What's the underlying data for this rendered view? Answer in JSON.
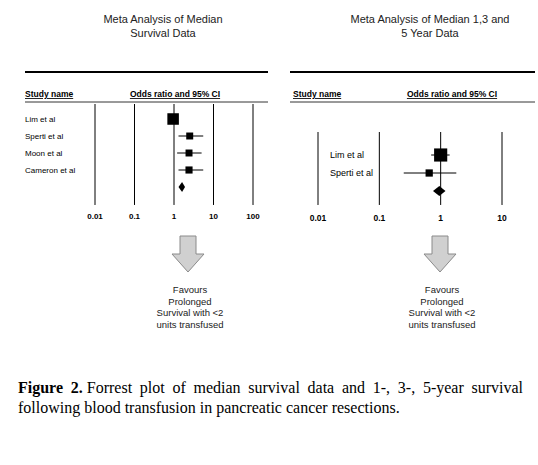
{
  "chart_data": [
    {
      "type": "forest",
      "title": "Meta Analysis of Median Survival Data",
      "column_headers": [
        "Study name",
        "Odds ratio and 95% CI"
      ],
      "categories": [
        "Lim et al",
        "Sperti et al",
        "Moon et al",
        "Cameron et al",
        null
      ],
      "series": [
        {
          "marker": "square",
          "values": [
            0.95,
            2.5,
            2.4,
            2.4,
            null
          ],
          "ci_low": [
            0.8,
            1.3,
            1.2,
            1.3,
            null
          ],
          "ci_high": [
            1.15,
            5.5,
            5,
            5.5,
            null
          ],
          "weights": [
            60,
            13,
            13,
            14,
            null
          ]
        },
        {
          "marker": "diamond",
          "values": [
            null,
            null,
            null,
            null,
            1.6
          ],
          "ci_low": [
            null,
            null,
            null,
            null,
            1.3
          ],
          "ci_high": [
            null,
            null,
            null,
            null,
            1.9
          ]
        }
      ],
      "log": "x",
      "xlim": [
        0.01,
        100
      ],
      "xticks": [
        0.01,
        0.1,
        1,
        10,
        100
      ],
      "grid": true,
      "annotation": [
        "Favours",
        "Prolonged",
        "Survival with <2",
        "units transfused"
      ]
    },
    {
      "type": "forest",
      "title": "Meta Analysis of Median 1,3 and 5 Year Data",
      "column_headers": [
        "Study name",
        "Odds ratio and 95% CI"
      ],
      "categories": [
        "Lim et al",
        "Sperti et al",
        null
      ],
      "series": [
        {
          "marker": "square",
          "values": [
            1.0,
            0.65,
            null
          ],
          "ci_low": [
            0.7,
            0.25,
            null
          ],
          "ci_high": [
            1.4,
            1.8,
            null
          ],
          "weights": [
            85,
            15,
            null
          ]
        },
        {
          "marker": "diamond",
          "values": [
            null,
            null,
            0.95
          ],
          "ci_low": [
            null,
            null,
            0.75
          ],
          "ci_high": [
            null,
            null,
            1.2
          ]
        }
      ],
      "log": "x",
      "xlim": [
        0.01,
        10
      ],
      "xticks": [
        0.01,
        0.1,
        1,
        10
      ],
      "grid": true,
      "annotation": [
        "Favours",
        "Prolonged",
        "Survival with <2",
        "units transfused"
      ]
    }
  ],
  "caption": {
    "label": "Figure 2.",
    "text": "Forrest plot of median survival data and 1-, 3-, 5-year survival following blood transfusion in pancreatic cancer resections."
  }
}
